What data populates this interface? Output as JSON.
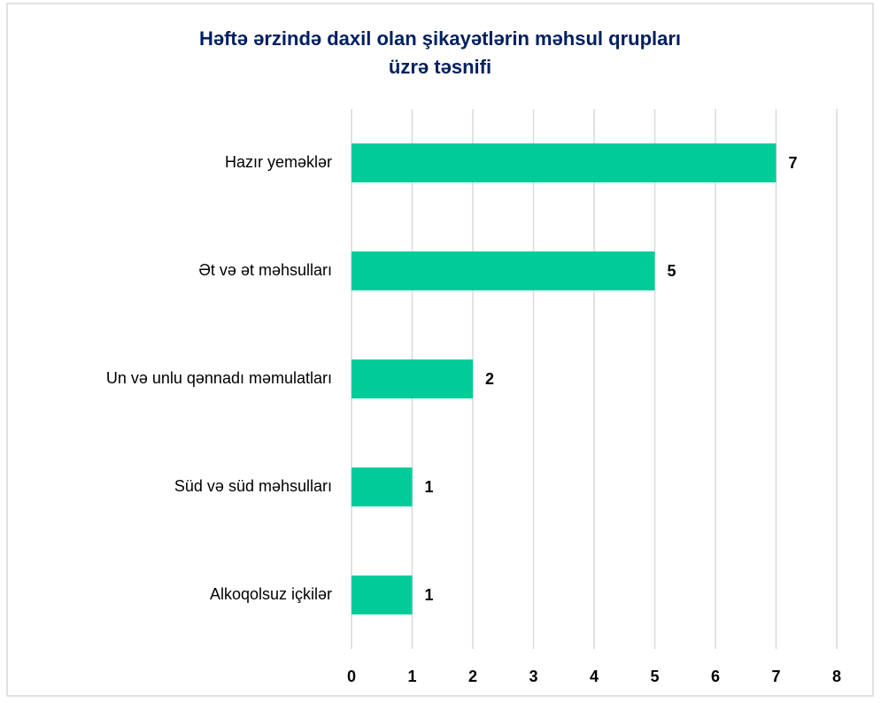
{
  "chart_data": {
    "type": "bar",
    "orientation": "horizontal",
    "title": [
      "Həftə ərzində daxil olan şikayətlərin məhsul qrupları",
      "üzrə təsnifi"
    ],
    "categories": [
      "Hazır yeməklər",
      "Ət və ət məhsulları",
      "Un və unlu qənnadı məmulatları",
      "Süd və süd məhsulları",
      "Alkoqolsuz içkilər"
    ],
    "values": [
      7,
      5,
      2,
      1,
      1
    ],
    "color": "#00cc99",
    "xlim": [
      0,
      8
    ],
    "xticks": [
      0,
      1,
      2,
      3,
      4,
      5,
      6,
      7,
      8
    ],
    "grid": true
  }
}
